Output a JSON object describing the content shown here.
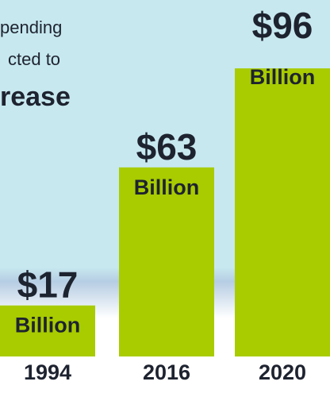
{
  "intro": {
    "line1": "pending",
    "line2": "cted to",
    "line3": "rease"
  },
  "chart_data": {
    "type": "bar",
    "categories": [
      "1994",
      "2016",
      "2020"
    ],
    "values": [
      17,
      63,
      96
    ],
    "value_labels": [
      "$17",
      "$63",
      "$96"
    ],
    "unit_label": "Billion",
    "title": "",
    "xlabel": "",
    "ylabel": "",
    "ylim": [
      0,
      100
    ]
  },
  "colors": {
    "background": "#c7e8ef",
    "bar": "#a8cc00",
    "value_text": "#1e2330",
    "unit_text": "#1e2330",
    "year_text": "#1e2330",
    "intro_text": "#1e2330"
  }
}
